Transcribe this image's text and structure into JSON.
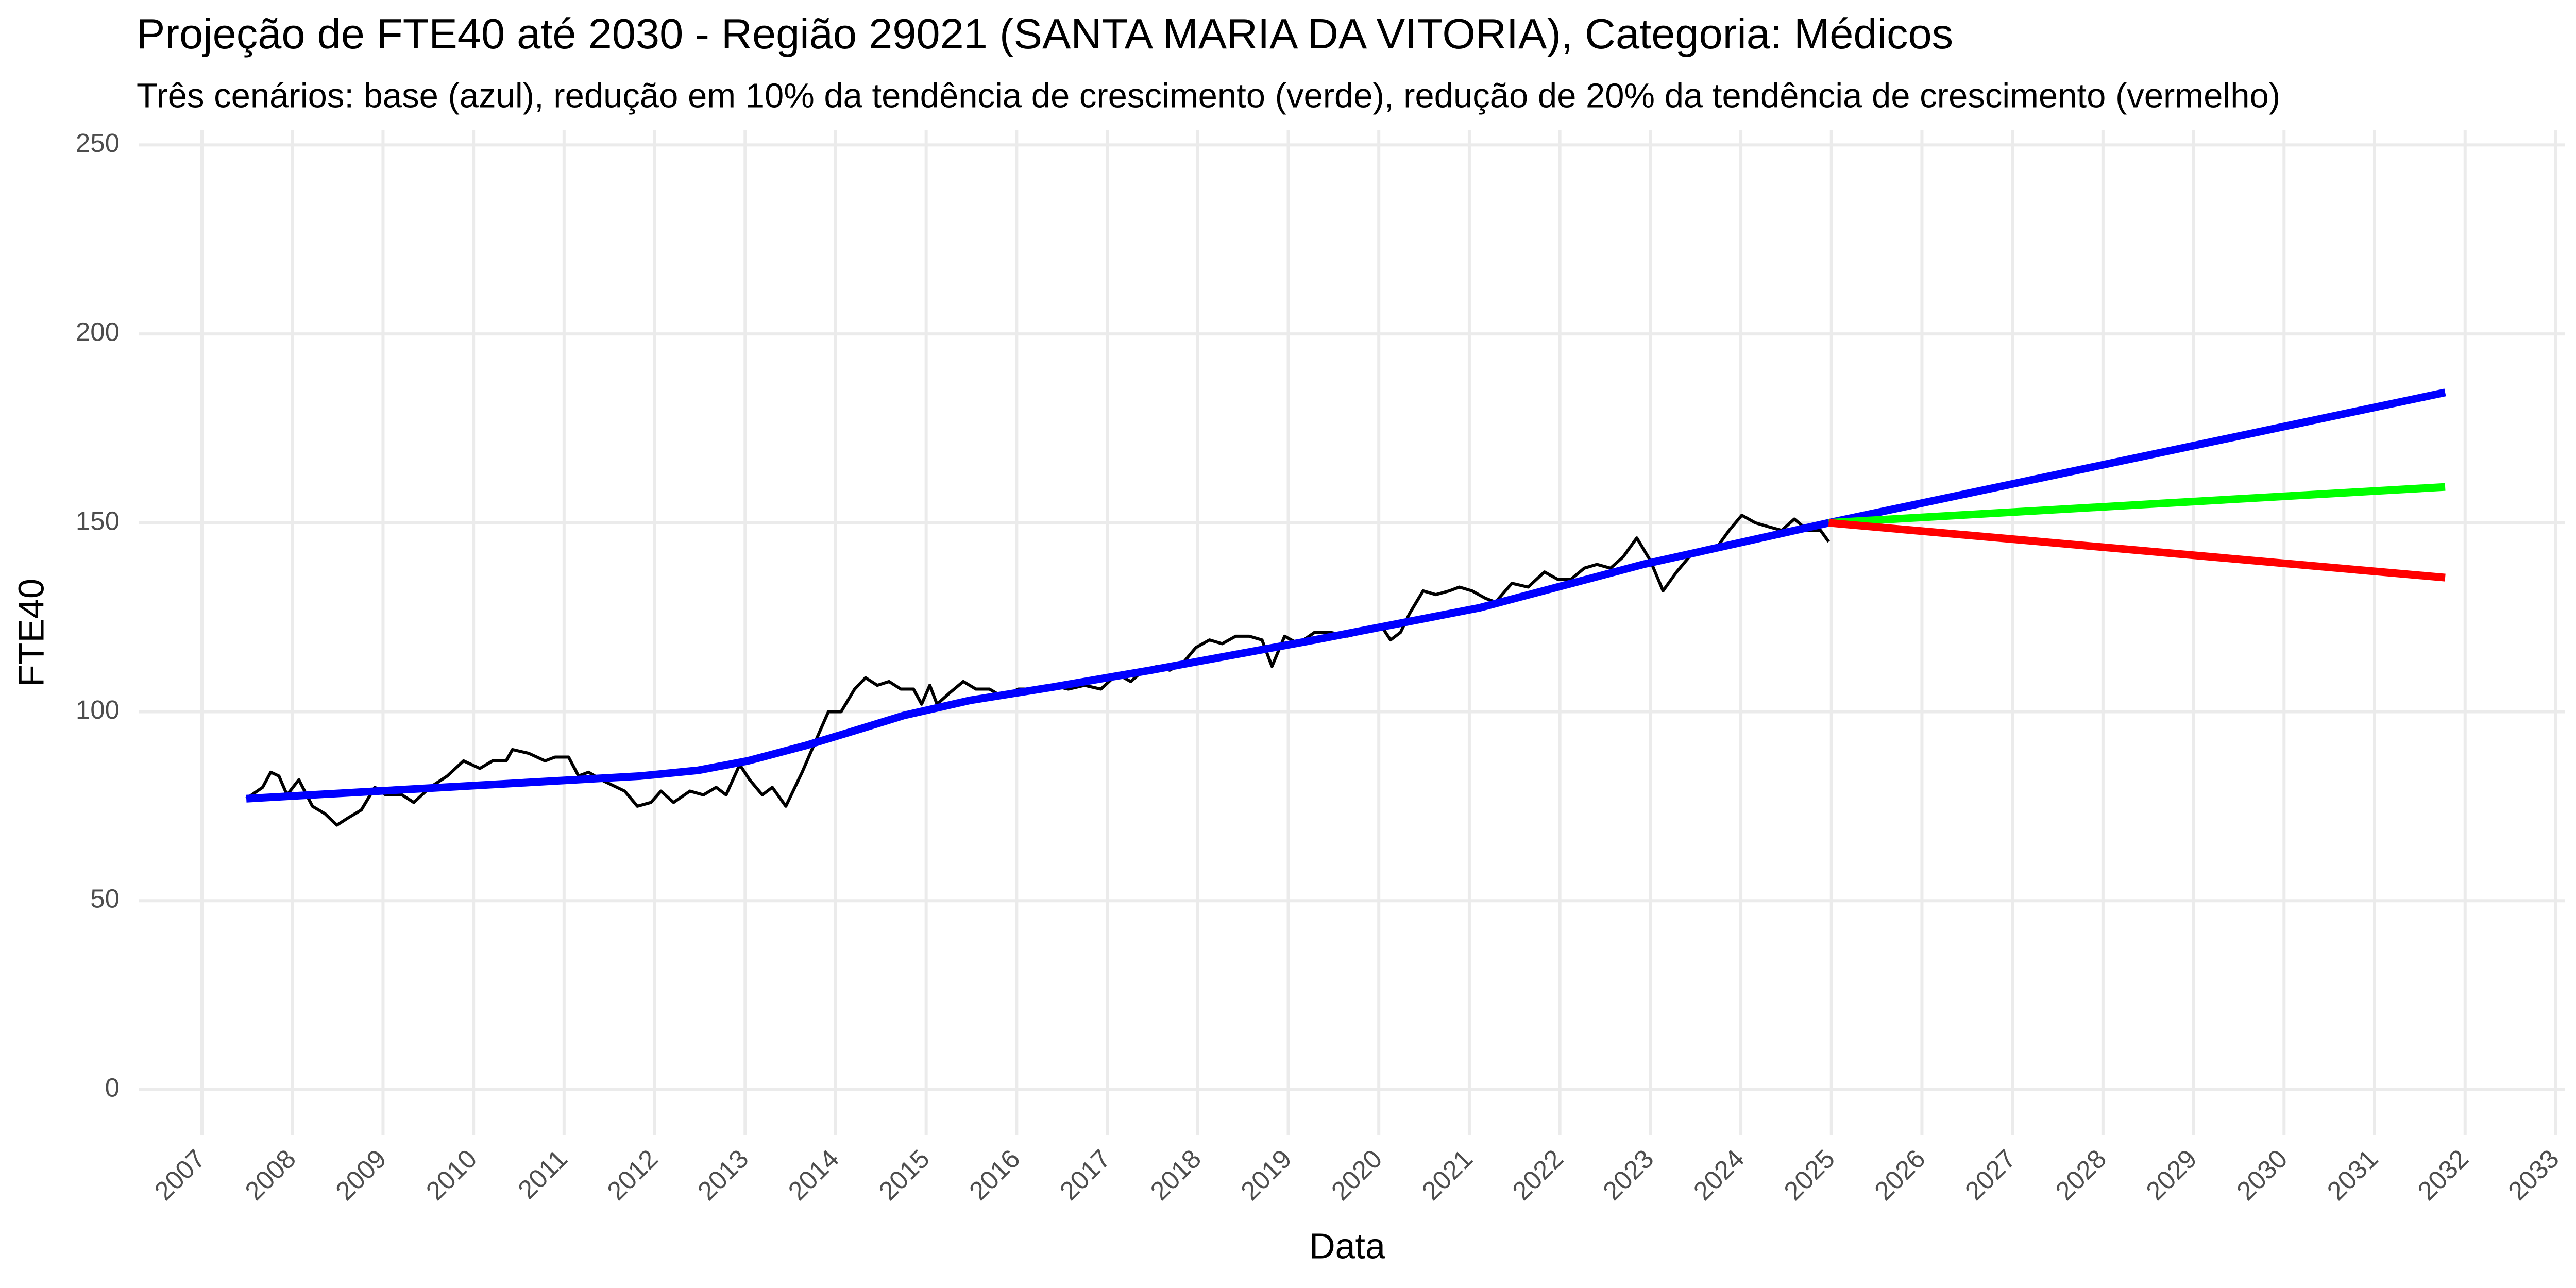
{
  "chart_data": {
    "type": "line",
    "title": "Projeção de FTE40 até 2030 - Região 29021 (SANTA MARIA DA VITORIA), Categoria: Médicos",
    "subtitle": "Três cenários: base (azul), redução em 10% da tendência de crescimento (verde), redução de 20% da tendência de crescimento (vermelho)",
    "x_label": "Data",
    "y_label": "FTE40",
    "xlim": [
      2006.3,
      2033.1
    ],
    "ylim": [
      -12,
      254
    ],
    "xticks": [
      2007,
      2008,
      2009,
      2010,
      2011,
      2012,
      2013,
      2014,
      2015,
      2016,
      2017,
      2018,
      2019,
      2020,
      2021,
      2022,
      2023,
      2024,
      2025,
      2026,
      2027,
      2028,
      2029,
      2030,
      2031,
      2032,
      2033
    ],
    "yticks": [
      0,
      50,
      100,
      150,
      200,
      250
    ],
    "grid": true,
    "series": [
      {
        "color": "#000000",
        "x": [
          2007.49,
          2007.67,
          2007.76,
          2007.85,
          2007.94,
          2008.07,
          2008.22,
          2008.36,
          2008.49,
          2008.62,
          2008.76,
          2008.91,
          2009.03,
          2009.21,
          2009.34,
          2009.52,
          2009.71,
          2009.89,
          2010.07,
          2010.21,
          2010.36,
          2010.43,
          2010.61,
          2010.79,
          2010.9,
          2011.05,
          2011.16,
          2011.27,
          2011.41,
          2011.67,
          2011.81,
          2011.96,
          2012.07,
          2012.21,
          2012.39,
          2012.54,
          2012.68,
          2012.79,
          2012.94,
          2013.05,
          2013.19,
          2013.3,
          2013.45,
          2013.63,
          2013.81,
          2013.92,
          2014.06,
          2014.21,
          2014.33,
          2014.46,
          2014.59,
          2014.72,
          2014.86,
          2014.95,
          2015.04,
          2015.12,
          2015.26,
          2015.41,
          2015.55,
          2015.7,
          2015.84,
          2016.02,
          2016.2,
          2016.39,
          2016.57,
          2016.75,
          2016.93,
          2017.11,
          2017.26,
          2017.4,
          2017.55,
          2017.69,
          2017.84,
          2017.98,
          2018.13,
          2018.27,
          2018.42,
          2018.57,
          2018.71,
          2018.82,
          2018.96,
          2019.11,
          2019.29,
          2019.47,
          2019.65,
          2019.84,
          2020.02,
          2020.13,
          2020.24,
          2020.34,
          2020.49,
          2020.63,
          2020.78,
          2020.89,
          2021.03,
          2021.18,
          2021.29,
          2021.47,
          2021.65,
          2021.83,
          2021.98,
          2022.12,
          2022.27,
          2022.41,
          2022.56,
          2022.7,
          2022.85,
          2023.0,
          2023.14,
          2023.29,
          2023.43,
          2023.58,
          2023.72,
          2023.87,
          2024.01,
          2024.16,
          2024.3,
          2024.45,
          2024.59,
          2024.74,
          2024.88,
          2024.97
        ],
        "values": [
          77,
          80,
          84,
          83,
          78,
          82,
          75,
          73,
          70,
          72,
          74,
          80,
          78,
          78,
          76,
          80,
          83,
          87,
          85,
          87,
          87,
          90,
          89,
          87,
          88,
          88,
          83,
          84,
          82,
          79,
          75,
          76,
          79,
          76,
          79,
          78,
          80,
          78,
          86,
          82,
          78,
          80,
          75,
          84,
          94,
          100,
          100,
          106,
          109,
          107,
          108,
          106,
          106,
          102,
          107,
          102,
          105,
          108,
          106,
          106,
          104,
          106,
          106,
          107,
          106,
          107,
          106,
          110,
          108,
          111,
          112,
          111,
          113,
          117,
          119,
          118,
          120,
          120,
          119,
          112,
          120,
          118,
          121,
          121,
          120,
          121,
          123,
          119,
          121,
          126,
          132,
          131,
          132,
          133,
          132,
          130,
          129,
          134,
          133,
          137,
          135,
          135,
          138,
          139,
          138,
          141,
          146,
          140,
          132,
          137,
          141,
          143,
          143,
          148,
          152,
          150,
          149,
          148,
          151,
          148,
          148,
          145
        ]
      },
      {
        "color": "#0000ff",
        "x": [
          2007.49,
          2011.85,
          2012.48,
          2013.03,
          2013.66,
          2014.21,
          2014.75,
          2015.48,
          2016.39,
          2017.48,
          2019.29,
          2021.11,
          2022.92,
          2024.97,
          2031.78
        ],
        "values": [
          77,
          83,
          84.5,
          87,
          91,
          95,
          99,
          103,
          106.5,
          111,
          119,
          127.5,
          139,
          150,
          184.5
        ]
      },
      {
        "color": "#00ff00",
        "x": [
          2024.97,
          2031.78
        ],
        "values": [
          150,
          159.5
        ]
      },
      {
        "color": "#ff0000",
        "x": [
          2024.97,
          2031.78
        ],
        "values": [
          150,
          135.5
        ]
      }
    ]
  }
}
